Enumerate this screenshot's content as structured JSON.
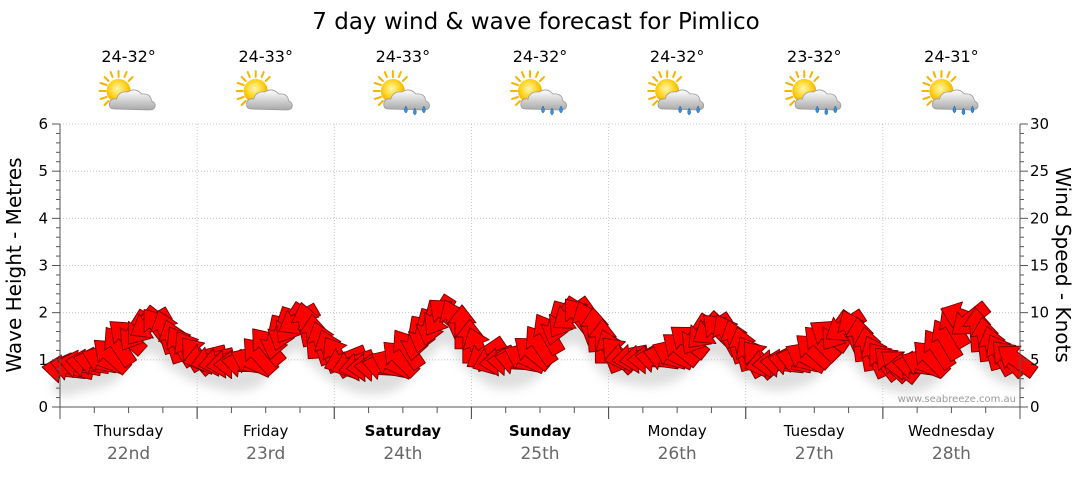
{
  "chart_data": {
    "type": "line",
    "title": "7 day wind & wave forecast for Pimlico",
    "ylabel_left": "Wave Height - Metres",
    "ylabel_right": "Wind Speed - Knots",
    "ylim_left": [
      0,
      6
    ],
    "ylim_right": [
      0,
      30
    ],
    "yticks_left": [
      "0",
      "1",
      "2",
      "3",
      "4",
      "5",
      "6"
    ],
    "yticks_right": [
      "0",
      "5",
      "10",
      "15",
      "20",
      "25",
      "30"
    ],
    "grid": true,
    "watermark": "www.seabreeze.com.au",
    "days": [
      {
        "name": "Thursday",
        "date": "22nd",
        "bold": false,
        "temp": "24-32°",
        "rain": false
      },
      {
        "name": "Friday",
        "date": "23rd",
        "bold": false,
        "temp": "24-33°",
        "rain": false
      },
      {
        "name": "Saturday",
        "date": "24th",
        "bold": true,
        "temp": "24-33°",
        "rain": true
      },
      {
        "name": "Sunday",
        "date": "25th",
        "bold": true,
        "temp": "24-32°",
        "rain": true
      },
      {
        "name": "Monday",
        "date": "26th",
        "bold": false,
        "temp": "24-32°",
        "rain": true
      },
      {
        "name": "Tuesday",
        "date": "27th",
        "bold": false,
        "temp": "23-32°",
        "rain": true
      },
      {
        "name": "Wednesday",
        "date": "28th",
        "bold": false,
        "temp": "24-31°",
        "rain": true
      }
    ],
    "series": [
      {
        "name": "Wind Speed",
        "color": "#ff0000",
        "units": "knots",
        "values": [
          4,
          4.2,
          4.5,
          4.6,
          4.8,
          5,
          5.5,
          6.5,
          7.5,
          8,
          8.5,
          8.8,
          8.5,
          8,
          7,
          6.5,
          6,
          5.5,
          5.3,
          5,
          4.8,
          4.6,
          4.5,
          4.6,
          4.8,
          5.5,
          6.5,
          7.3,
          8.2,
          8.8,
          9.2,
          8.8,
          7.5,
          6.8,
          6,
          5.4,
          5,
          4.6,
          4.3,
          4.2,
          4.2,
          4.3,
          4.6,
          5.2,
          6.2,
          7.2,
          8,
          8.8,
          9.6,
          9.8,
          9.2,
          8.5,
          7,
          6.2,
          5.6,
          5,
          4.8,
          4.8,
          4.9,
          5.2,
          5.8,
          6.6,
          7.8,
          8.8,
          9.4,
          9.8,
          9.6,
          9,
          8.2,
          7,
          6,
          5.6,
          5.4,
          5.2,
          5.1,
          5,
          5.1,
          5.3,
          5.6,
          6.2,
          7,
          7.6,
          8,
          8.2,
          8.1,
          7.7,
          7,
          6.2,
          5.4,
          5.1,
          4.7,
          4.6,
          4.6,
          4.8,
          5,
          5.3,
          6,
          6.8,
          7.6,
          8,
          8.5,
          8.1,
          7.2,
          6.2,
          5.4,
          4.9,
          4.6,
          4.4,
          4.3,
          4.4,
          4.6,
          5.2,
          6.2,
          7.2,
          8.5,
          9.6,
          9.2,
          8.2,
          7.2,
          6.3,
          5.6,
          5.2,
          5.0
        ]
      }
    ]
  }
}
